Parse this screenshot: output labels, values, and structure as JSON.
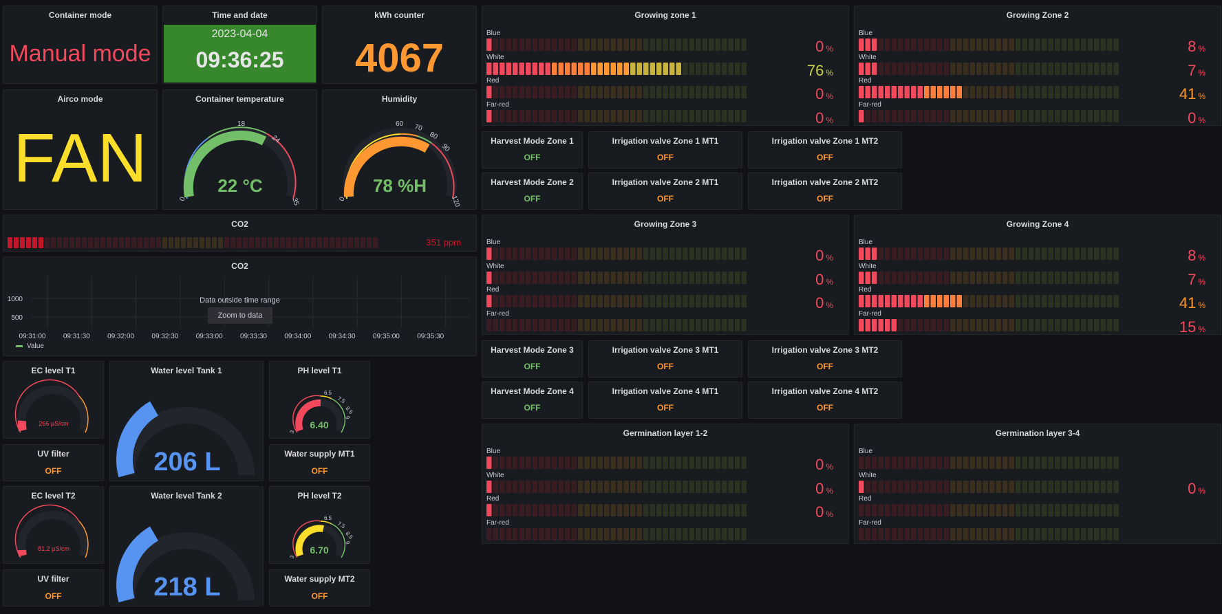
{
  "colors": {
    "red": "#f2495c",
    "green": "#73bf69",
    "orange": "#ff9830",
    "yellow": "#fade2a",
    "blue": "#5794f2",
    "time_bg": "#37872d"
  },
  "container_mode": {
    "title": "Container mode",
    "value": "Manual mode"
  },
  "time": {
    "title": "Time and date",
    "date": "2023-04-04",
    "time": "09:36:25"
  },
  "kwh": {
    "title": "kWh counter",
    "value": "4067"
  },
  "airco": {
    "title": "Airco mode",
    "value": "FAN"
  },
  "temp": {
    "title": "Container temperature",
    "value": "22 °C",
    "level": 22,
    "min": 0,
    "max": 35,
    "ticks": [
      "0",
      "18",
      "24",
      "35"
    ]
  },
  "humidity": {
    "title": "Humidity",
    "value": "78 %H",
    "level": 78,
    "min": 0,
    "max": 120,
    "ticks": [
      "0",
      "60",
      "70",
      "80",
      "90",
      "120"
    ]
  },
  "co2_bar": {
    "title": "CO2",
    "value": "351 ppm"
  },
  "co2_chart": {
    "title": "CO2",
    "y_ticks": [
      "1000",
      "500"
    ],
    "x_ticks": [
      "09:31:00",
      "09:31:30",
      "09:32:00",
      "09:32:30",
      "09:33:00",
      "09:33:30",
      "09:34:00",
      "09:34:30",
      "09:35:00",
      "09:35:30"
    ],
    "message": "Data outside time range",
    "zoom_button": "Zoom to data",
    "legend": "Value"
  },
  "tanks": [
    {
      "ec_title": "EC level T1",
      "ec_value": "266 µS/cm",
      "ec_level": 0.1,
      "water_title": "Water level Tank 1",
      "water_value": "206 L",
      "water_level": 0.38,
      "ph_title": "PH level T1",
      "ph_value": "6.40",
      "ph_level": 0.55,
      "ph_color": "#f2495c",
      "ph_ticks": [
        "3",
        "6.5",
        "7.5",
        "8.5",
        "9"
      ],
      "uv_title": "UV filter",
      "uv_state": "OFF",
      "supply_title": "Water supply MT1",
      "supply_state": "OFF"
    },
    {
      "ec_title": "EC level T2",
      "ec_value": "81.2 µS/cm",
      "ec_level": 0.05,
      "water_title": "Water level Tank 2",
      "water_value": "218 L",
      "water_level": 0.4,
      "ph_title": "PH level T2",
      "ph_value": "6.70",
      "ph_level": 0.58,
      "ph_color": "#fade2a",
      "ph_ticks": [
        "3",
        "6.5",
        "7.5",
        "8.5",
        "9"
      ],
      "uv_title": "UV filter",
      "uv_state": "OFF",
      "supply_title": "Water supply MT2",
      "supply_state": "OFF"
    }
  ],
  "zones": [
    {
      "title": "Growing zone 1",
      "rows": [
        {
          "label": "Blue",
          "pct": "0",
          "level": 0
        },
        {
          "label": "White",
          "pct": "76",
          "level": 76
        },
        {
          "label": "Red",
          "pct": "0",
          "level": 0
        },
        {
          "label": "Far-red",
          "pct": "0",
          "level": 0
        }
      ]
    },
    {
      "title": "Growing Zone 2",
      "rows": [
        {
          "label": "Blue",
          "pct": "8",
          "level": 8
        },
        {
          "label": "White",
          "pct": "7",
          "level": 7
        },
        {
          "label": "Red",
          "pct": "41",
          "level": 41
        },
        {
          "label": "Far-red",
          "pct": "0",
          "level": 0
        }
      ]
    },
    {
      "title": "Growing Zone 3",
      "rows": [
        {
          "label": "Blue",
          "pct": "0",
          "level": 0
        },
        {
          "label": "White",
          "pct": "0",
          "level": 0
        },
        {
          "label": "Red",
          "pct": "0",
          "level": 0
        },
        {
          "label": "Far-red",
          "pct": "",
          "level": 0
        }
      ]
    },
    {
      "title": "Growing Zone 4",
      "rows": [
        {
          "label": "Blue",
          "pct": "8",
          "level": 8
        },
        {
          "label": "White",
          "pct": "7",
          "level": 7
        },
        {
          "label": "Red",
          "pct": "41",
          "level": 41
        },
        {
          "label": "Far-red",
          "pct": "15",
          "level": 15
        }
      ]
    },
    {
      "title": "Germination layer 1-2",
      "rows": [
        {
          "label": "Blue",
          "pct": "0",
          "level": 0
        },
        {
          "label": "White",
          "pct": "0",
          "level": 0
        },
        {
          "label": "Red",
          "pct": "0",
          "level": 0
        },
        {
          "label": "Far-red",
          "pct": "",
          "level": 0
        }
      ]
    },
    {
      "title": "Germination layer 3-4",
      "rows": [
        {
          "label": "Blue",
          "pct": "",
          "level": 0
        },
        {
          "label": "White",
          "pct": "0",
          "level": 0
        },
        {
          "label": "Red",
          "pct": "",
          "level": 0
        },
        {
          "label": "Far-red",
          "pct": "",
          "level": 0
        }
      ]
    }
  ],
  "valve_groups": [
    [
      {
        "title": "Harvest Mode Zone 1",
        "state": "OFF",
        "color": "#73bf69"
      },
      {
        "title": "Irrigation valve Zone 1 MT1",
        "state": "OFF",
        "color": "#ff9830"
      },
      {
        "title": "Irrigation valve Zone 1 MT2",
        "state": "OFF",
        "color": "#ff9830"
      }
    ],
    [
      {
        "title": "Harvest Mode Zone 2",
        "state": "OFF",
        "color": "#73bf69"
      },
      {
        "title": "Irrigation valve Zone 2 MT1",
        "state": "OFF",
        "color": "#ff9830"
      },
      {
        "title": "Irrigation valve Zone 2 MT2",
        "state": "OFF",
        "color": "#ff9830"
      }
    ],
    [
      {
        "title": "Harvest Mode Zone 3",
        "state": "OFF",
        "color": "#73bf69"
      },
      {
        "title": "Irrigation valve Zone 3 MT1",
        "state": "OFF",
        "color": "#ff9830"
      },
      {
        "title": "Irrigation valve Zone 3 MT2",
        "state": "OFF",
        "color": "#ff9830"
      }
    ],
    [
      {
        "title": "Harvest Mode Zone 4",
        "state": "OFF",
        "color": "#73bf69"
      },
      {
        "title": "Irrigation valve Zone 4 MT1",
        "state": "OFF",
        "color": "#ff9830"
      },
      {
        "title": "Irrigation valve Zone 4 MT2",
        "state": "OFF",
        "color": "#ff9830"
      }
    ]
  ]
}
